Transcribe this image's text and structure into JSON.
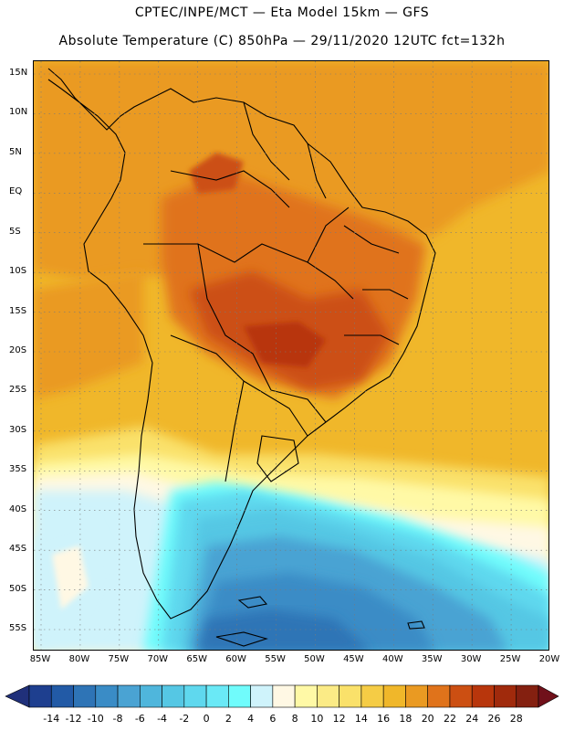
{
  "header": {
    "line1": "CPTEC/INPE/MCT —  Eta Model 15km — GFS",
    "line2": "Absolute Temperature (C) 850hPa — 29/11/2020 12UTC fct=132h"
  },
  "latitude_labels": [
    "15N",
    "10N",
    "5N",
    "EQ",
    "5S",
    "10S",
    "15S",
    "20S",
    "25S",
    "30S",
    "35S",
    "40S",
    "45S",
    "50S",
    "55S"
  ],
  "latitude_values": [
    15,
    10,
    5,
    0,
    -5,
    -10,
    -15,
    -20,
    -25,
    -30,
    -35,
    -40,
    -45,
    -50,
    -55
  ],
  "longitude_labels": [
    "85W",
    "80W",
    "75W",
    "70W",
    "65W",
    "60W",
    "55W",
    "50W",
    "45W",
    "40W",
    "35W",
    "30W",
    "25W",
    "20W"
  ],
  "longitude_values": [
    -85,
    -80,
    -75,
    -70,
    -65,
    -60,
    -55,
    -50,
    -45,
    -40,
    -35,
    -30,
    -25,
    -20
  ],
  "colorbar": {
    "labels": [
      "-14",
      "-12",
      "-10",
      "-8",
      "-6",
      "-4",
      "-2",
      "0",
      "2",
      "4",
      "6",
      "8",
      "10",
      "12",
      "14",
      "16",
      "18",
      "20",
      "22",
      "24",
      "26",
      "28"
    ],
    "colors": [
      "#1e3f8f",
      "#225aa6",
      "#2e74b6",
      "#3a8cc6",
      "#4aa3d3",
      "#4fb6dc",
      "#55c7e4",
      "#5fd8ee",
      "#6ae9f6",
      "#70fcfc",
      "#cff3fb",
      "#fff8e4",
      "#fff9a6",
      "#fbeb86",
      "#fae16a",
      "#f5cc45",
      "#f0b72a",
      "#ea9a22",
      "#e0731b",
      "#cc4f12",
      "#b8360c",
      "#a02a0c",
      "#842010"
    ],
    "under_color": "#20307a",
    "over_color": "#70101a"
  }
}
